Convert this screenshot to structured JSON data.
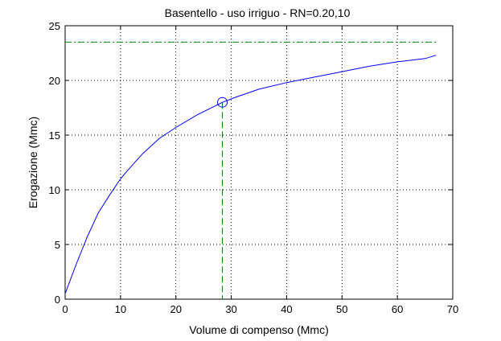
{
  "chart_data": {
    "type": "line",
    "title": "Basentello  -  uso irriguo  -   RN=0.20,10",
    "xlabel": "Volume di compenso (Mmc)",
    "ylabel": "Erogazione (Mmc)",
    "xlim": [
      0,
      70
    ],
    "ylim": [
      0,
      25
    ],
    "x_ticks": [
      "0",
      "10",
      "20",
      "30",
      "40",
      "50",
      "60",
      "70"
    ],
    "y_ticks": [
      "0",
      "5",
      "10",
      "15",
      "20",
      "25"
    ],
    "grid": true,
    "series": [
      {
        "color": "#0000ff",
        "points": [
          [
            0,
            0.5
          ],
          [
            2,
            3.2
          ],
          [
            4,
            5.7
          ],
          [
            6,
            7.9
          ],
          [
            8,
            9.5
          ],
          [
            10,
            11.0
          ],
          [
            11,
            11.6
          ],
          [
            14,
            13.3
          ],
          [
            17,
            14.7
          ],
          [
            20,
            15.7
          ],
          [
            24,
            16.9
          ],
          [
            28.4,
            18.0
          ],
          [
            31,
            18.5
          ],
          [
            35,
            19.2
          ],
          [
            40,
            19.8
          ],
          [
            45,
            20.3
          ],
          [
            50,
            20.8
          ],
          [
            55,
            21.3
          ],
          [
            60,
            21.7
          ],
          [
            65,
            22.0
          ],
          [
            67,
            22.3
          ]
        ]
      }
    ],
    "reference_lines": {
      "color": "#008000",
      "horizontal_y": 23.5,
      "vertical_x": 28.4
    },
    "marker": {
      "x": 28.4,
      "y": 18.0,
      "shape": "circle",
      "color": "#0000ff"
    }
  }
}
